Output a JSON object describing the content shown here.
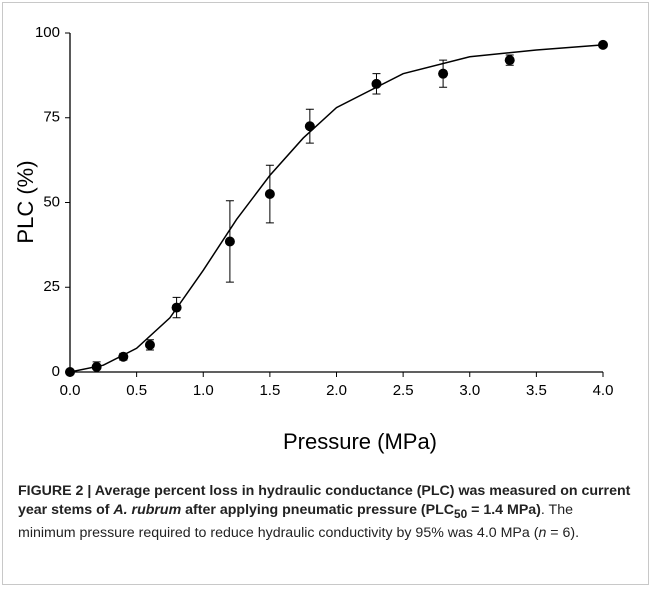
{
  "chart_data": {
    "type": "scatter",
    "xlabel": "Pressure (MPa)",
    "ylabel": "PLC (%)",
    "xlim": [
      0,
      4
    ],
    "ylim": [
      0,
      100
    ],
    "xticks": [
      {
        "value": 0,
        "label": "0.0"
      },
      {
        "value": 0.5,
        "label": "0.5"
      },
      {
        "value": 1,
        "label": "1.0"
      },
      {
        "value": 1.5,
        "label": "1.5"
      },
      {
        "value": 2,
        "label": "2.0"
      },
      {
        "value": 2.5,
        "label": "2.5"
      },
      {
        "value": 3,
        "label": "3.0"
      },
      {
        "value": 3.5,
        "label": "3.5"
      },
      {
        "value": 4,
        "label": "4.0"
      }
    ],
    "yticks": [
      0,
      25,
      50,
      75,
      100
    ],
    "series": [
      {
        "color": "#000000",
        "x": [
          0,
          0.2,
          0.4,
          0.6,
          0.8,
          1.2,
          1.5,
          1.8,
          2.3,
          2.8,
          3.3,
          4.0
        ],
        "values": [
          0,
          1.5,
          4.5,
          8,
          19,
          38.5,
          52.5,
          72.5,
          85,
          88,
          92,
          96.5
        ],
        "errors": [
          0,
          1.5,
          1,
          1.5,
          3,
          12,
          8.5,
          5,
          3,
          4,
          1.5,
          0.5
        ]
      },
      {
        "color": "#000000",
        "type": "line",
        "x": [
          0,
          0.25,
          0.5,
          0.75,
          1,
          1.25,
          1.5,
          1.75,
          2,
          2.5,
          3,
          3.5,
          4
        ],
        "values": [
          0,
          2,
          7,
          16,
          30,
          45,
          58,
          69,
          78,
          88,
          93,
          95,
          96.5
        ]
      }
    ]
  },
  "caption": {
    "parts": [
      "FIGURE 2 | Average percent loss in hydraulic conductance (PLC) was measured on current year stems of ",
      "A. rubrum",
      " after applying pneumatic pressure (PLC",
      "50",
      " = 1.4 MPa)",
      ". The minimum pressure required to reduce hydraulic conductivity by 95% was 4.0 MPa (",
      "n",
      " = 6)."
    ]
  }
}
